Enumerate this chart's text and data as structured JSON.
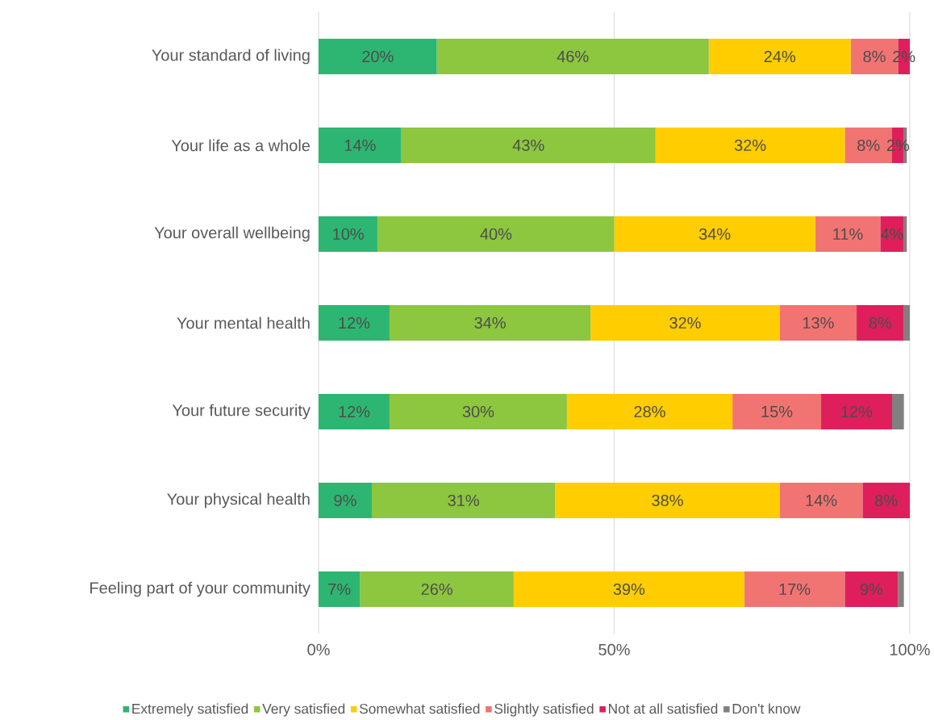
{
  "chart_data": {
    "type": "bar",
    "orientation": "horizontal",
    "stacked": true,
    "categories": [
      "Your standard of living",
      "Your life as a whole",
      "Your overall wellbeing",
      "Your mental health",
      "Your future security",
      "Your physical health",
      "Feeling part of your community"
    ],
    "series": [
      {
        "name": "Extremely satisfied",
        "color": "#2db672",
        "values": [
          20,
          14,
          10,
          12,
          12,
          9,
          7
        ],
        "value_labels": [
          "20%",
          "14%",
          "10%",
          "12%",
          "12%",
          "9%",
          "7%"
        ]
      },
      {
        "name": "Very satisfied",
        "color": "#8dc63f",
        "values": [
          46,
          43,
          40,
          34,
          30,
          31,
          26
        ],
        "value_labels": [
          "46%",
          "43%",
          "40%",
          "34%",
          "30%",
          "31%",
          "26%"
        ]
      },
      {
        "name": "Somewhat satisfied",
        "color": "#ffcd00",
        "values": [
          24,
          32,
          34,
          32,
          28,
          38,
          39
        ],
        "value_labels": [
          "24%",
          "32%",
          "34%",
          "32%",
          "28%",
          "38%",
          "39%"
        ]
      },
      {
        "name": "Slightly satisfied",
        "color": "#f27472",
        "values": [
          8,
          8,
          11,
          13,
          15,
          14,
          17
        ],
        "value_labels": [
          "8%",
          "8%",
          "11%",
          "13%",
          "15%",
          "14%",
          "17%"
        ]
      },
      {
        "name": "Not at all satisfied",
        "color": "#de1f5c",
        "values": [
          2,
          2,
          4,
          8,
          12,
          8,
          9
        ],
        "value_labels": [
          "2%",
          "2%",
          "4%",
          "8%",
          "12%",
          "8%",
          "9%"
        ]
      },
      {
        "name": "Don't know",
        "color": "#808080",
        "values": [
          0,
          0.5,
          0.5,
          1,
          2,
          0,
          1
        ],
        "value_labels": [
          null,
          null,
          null,
          null,
          null,
          null,
          null
        ]
      }
    ],
    "xlim": [
      0,
      100
    ],
    "xticks": [
      {
        "value": 0,
        "label": "0%"
      },
      {
        "value": 50,
        "label": "50%"
      },
      {
        "value": 100,
        "label": "100%"
      }
    ],
    "grid": "x",
    "legend": "bottom"
  }
}
